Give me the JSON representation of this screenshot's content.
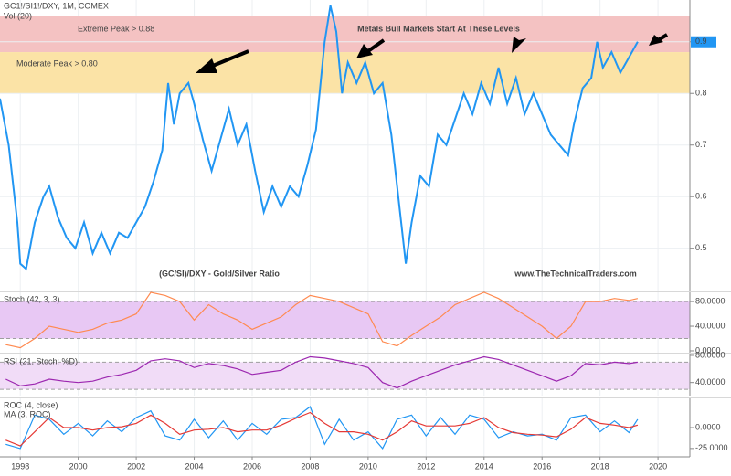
{
  "chart_data": [
    {
      "type": "line",
      "title": "GC1!/SI1!/DXY, 1M, COMEX",
      "subtitle": "Vol (20)",
      "annotations": [
        "Metals Bull Markets Start At These Levels",
        "(GC/SI)/DXY - Gold/Silver Ratio",
        "www.TheTechnicalTraders.com"
      ],
      "last_value_label": "0.9",
      "xlim": [
        1997.3,
        2021.1
      ],
      "xticks": [
        1998,
        2000,
        2002,
        2004,
        2006,
        2008,
        2010,
        2012,
        2014,
        2016,
        2018,
        2020
      ],
      "ylim": [
        0.418,
        0.981
      ],
      "yticks": [
        0.5,
        0.6,
        0.7,
        0.8,
        0.9
      ],
      "grid": true,
      "bands": [
        {
          "label": "Extreme Peak > 0.88",
          "from": 0.88,
          "to": 0.95,
          "color": "#f4c2c2"
        },
        {
          "label": "Moderate Peak > 0.80",
          "from": 0.8,
          "to": 0.88,
          "color": "#fbe3a6"
        }
      ],
      "x": [
        1997.3,
        1997.6,
        1997.9,
        1998.0,
        1998.2,
        1998.5,
        1998.8,
        1999.0,
        1999.3,
        1999.6,
        1999.9,
        2000.2,
        2000.5,
        2000.8,
        2001.1,
        2001.4,
        2001.7,
        2002.0,
        2002.3,
        2002.6,
        2002.9,
        2003.1,
        2003.3,
        2003.5,
        2003.8,
        2004.0,
        2004.3,
        2004.6,
        2004.9,
        2005.2,
        2005.5,
        2005.8,
        2006.1,
        2006.4,
        2006.7,
        2007.0,
        2007.3,
        2007.6,
        2007.9,
        2008.2,
        2008.5,
        2008.7,
        2008.9,
        2009.1,
        2009.3,
        2009.6,
        2009.9,
        2010.2,
        2010.5,
        2010.8,
        2011.0,
        2011.3,
        2011.5,
        2011.8,
        2012.1,
        2012.4,
        2012.7,
        2013.0,
        2013.3,
        2013.6,
        2013.9,
        2014.2,
        2014.5,
        2014.8,
        2015.1,
        2015.4,
        2015.7,
        2016.0,
        2016.3,
        2016.6,
        2016.9,
        2017.1,
        2017.4,
        2017.7,
        2017.9,
        2018.1,
        2018.4,
        2018.7,
        2019.0,
        2019.3
      ],
      "series": [
        {
          "name": "GC1!/SI1!/DXY",
          "color": "#2196f3",
          "values": [
            0.79,
            0.7,
            0.55,
            0.47,
            0.46,
            0.55,
            0.6,
            0.62,
            0.56,
            0.52,
            0.5,
            0.55,
            0.49,
            0.53,
            0.49,
            0.53,
            0.52,
            0.55,
            0.58,
            0.63,
            0.69,
            0.82,
            0.74,
            0.8,
            0.82,
            0.78,
            0.71,
            0.65,
            0.71,
            0.77,
            0.7,
            0.74,
            0.65,
            0.57,
            0.62,
            0.58,
            0.62,
            0.6,
            0.66,
            0.73,
            0.9,
            0.97,
            0.92,
            0.8,
            0.86,
            0.82,
            0.86,
            0.8,
            0.82,
            0.72,
            0.62,
            0.47,
            0.55,
            0.64,
            0.62,
            0.72,
            0.7,
            0.75,
            0.8,
            0.76,
            0.82,
            0.78,
            0.85,
            0.78,
            0.83,
            0.76,
            0.8,
            0.76,
            0.72,
            0.7,
            0.68,
            0.74,
            0.81,
            0.83,
            0.9,
            0.85,
            0.88,
            0.84,
            0.87,
            0.9
          ]
        }
      ]
    },
    {
      "type": "line",
      "ylim": [
        -3,
        95
      ],
      "yticks": [
        {
          "value": 0,
          "label": "0.0000"
        },
        {
          "value": 40,
          "label": "40.0000"
        },
        {
          "value": 80,
          "label": "80.0000"
        }
      ],
      "bands": [
        {
          "from": 20,
          "to": 80,
          "color": "#e8c8f4"
        }
      ],
      "x": [
        1997.5,
        1998,
        1998.5,
        1999,
        1999.5,
        2000,
        2000.5,
        2001,
        2001.5,
        2002,
        2002.5,
        2003,
        2003.5,
        2004,
        2004.5,
        2005,
        2005.5,
        2006,
        2006.5,
        2007,
        2007.5,
        2008,
        2008.5,
        2009,
        2009.5,
        2010,
        2010.5,
        2011,
        2011.5,
        2012,
        2012.5,
        2013,
        2013.5,
        2014,
        2014.5,
        2015,
        2015.5,
        2016,
        2016.5,
        2017,
        2017.5,
        2018,
        2018.5,
        2019,
        2019.3
      ],
      "series": [
        {
          "name": "Stoch (42, 3, 3)",
          "color": "#ff8a50",
          "values": [
            10,
            5,
            20,
            40,
            35,
            30,
            35,
            45,
            50,
            60,
            95,
            90,
            80,
            50,
            75,
            60,
            50,
            35,
            45,
            55,
            75,
            90,
            85,
            80,
            70,
            60,
            15,
            8,
            25,
            40,
            55,
            75,
            85,
            95,
            85,
            70,
            55,
            40,
            20,
            40,
            80,
            80,
            85,
            82,
            85
          ]
        }
      ]
    },
    {
      "type": "line",
      "ylim": [
        20.7,
        81.3
      ],
      "yticks": [
        {
          "value": 40,
          "label": "40.0000"
        },
        {
          "value": 80,
          "label": "80.0000"
        }
      ],
      "bands": [
        {
          "from": 30,
          "to": 70,
          "color": "#f1dcf7"
        }
      ],
      "x": [
        1997.5,
        1998,
        1998.5,
        1999,
        1999.5,
        2000,
        2000.5,
        2001,
        2001.5,
        2002,
        2002.5,
        2003,
        2003.5,
        2004,
        2004.5,
        2005,
        2005.5,
        2006,
        2006.5,
        2007,
        2007.5,
        2008,
        2008.5,
        2009,
        2009.5,
        2010,
        2010.5,
        2011,
        2011.5,
        2012,
        2012.5,
        2013,
        2013.5,
        2014,
        2014.5,
        2015,
        2015.5,
        2016,
        2016.5,
        2017,
        2017.5,
        2018,
        2018.5,
        2019,
        2019.3
      ],
      "series": [
        {
          "name": "RSI (21, Stoch: %D)",
          "color": "#9c27b0",
          "values": [
            45,
            35,
            38,
            45,
            42,
            40,
            42,
            48,
            52,
            58,
            72,
            75,
            72,
            62,
            68,
            65,
            60,
            52,
            55,
            58,
            70,
            78,
            76,
            72,
            68,
            62,
            40,
            32,
            42,
            50,
            58,
            66,
            72,
            78,
            74,
            66,
            58,
            50,
            42,
            50,
            68,
            66,
            70,
            68,
            70
          ]
        }
      ]
    },
    {
      "type": "line",
      "ylim": [
        -35,
        35
      ],
      "yticks": [
        {
          "value": -25,
          "label": "-25.0000"
        },
        {
          "value": 0,
          "label": "0.0000"
        }
      ],
      "x": [
        1997.5,
        1998,
        1998.5,
        1999,
        1999.5,
        2000,
        2000.5,
        2001,
        2001.5,
        2002,
        2002.5,
        2003,
        2003.5,
        2004,
        2004.5,
        2005,
        2005.5,
        2006,
        2006.5,
        2007,
        2007.5,
        2008,
        2008.5,
        2009,
        2009.5,
        2010,
        2010.5,
        2011,
        2011.5,
        2012,
        2012.5,
        2013,
        2013.5,
        2014,
        2014.5,
        2015,
        2015.5,
        2016,
        2016.5,
        2017,
        2017.5,
        2018,
        2018.5,
        2019,
        2019.3
      ],
      "series": [
        {
          "name": "ROC (4, close)",
          "color": "#2196f3",
          "values": [
            -20,
            -25,
            15,
            10,
            -8,
            5,
            -10,
            8,
            -5,
            12,
            20,
            -10,
            -15,
            10,
            -12,
            8,
            -15,
            5,
            -8,
            10,
            12,
            25,
            -20,
            10,
            -15,
            -5,
            -25,
            10,
            15,
            -10,
            12,
            -8,
            15,
            10,
            -12,
            -5,
            -10,
            -8,
            -15,
            12,
            15,
            -5,
            8,
            -6,
            10
          ]
        },
        {
          "name": "MA (3, ROC)",
          "color": "#e53935",
          "values": [
            -15,
            -22,
            -5,
            12,
            0,
            0,
            -3,
            0,
            1,
            5,
            15,
            5,
            -8,
            -3,
            -2,
            0,
            -5,
            -3,
            -3,
            3,
            11,
            18,
            5,
            -5,
            -5,
            -8,
            -15,
            -5,
            8,
            2,
            2,
            2,
            5,
            12,
            0,
            -6,
            -8,
            -9,
            -11,
            -2,
            12,
            5,
            3,
            0,
            3
          ]
        }
      ]
    }
  ]
}
